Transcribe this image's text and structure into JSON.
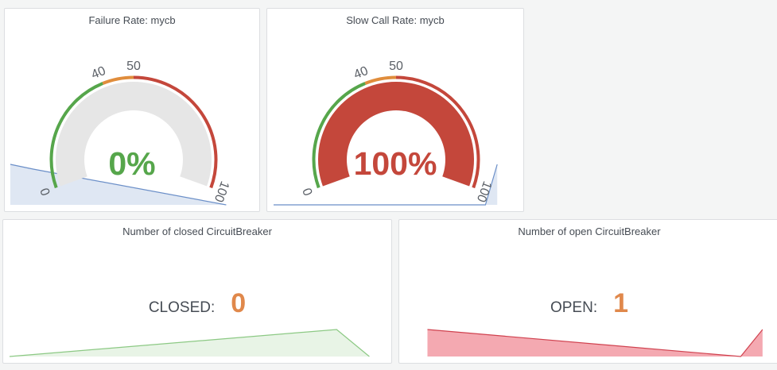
{
  "panels": {
    "failure_rate": {
      "title": "Failure Rate: mycb",
      "value": 0,
      "value_text": "0%",
      "value_color": "#56a64b",
      "min_label": "0",
      "max_label": "100",
      "threshold_labels": [
        "40",
        "50"
      ],
      "thresholds": [
        40,
        50
      ],
      "spark_values": [
        100,
        88,
        0
      ],
      "spark_color": "#b3c7e6"
    },
    "slow_call_rate": {
      "title": "Slow Call Rate: mycb",
      "value": 100,
      "value_text": "100%",
      "value_color": "#c4473b",
      "min_label": "0",
      "max_label": "100",
      "threshold_labels": [
        "40",
        "50"
      ],
      "thresholds": [
        40,
        50
      ],
      "spark_values": [
        0,
        0,
        100
      ],
      "spark_color": "#b3c7e6"
    },
    "closed_cb": {
      "title": "Number of closed CircuitBreaker",
      "prefix": "CLOSED:",
      "value": "0",
      "value_color": "#e0884b",
      "spark_values": [
        0,
        1,
        0
      ],
      "spark_color": "#73bf69"
    },
    "open_cb": {
      "title": "Number of open CircuitBreaker",
      "prefix": "OPEN:",
      "value": "1",
      "value_color": "#e0884b",
      "spark_values": [
        1,
        0,
        1
      ],
      "spark_color": "#f2495c"
    }
  },
  "colors": {
    "threshold_green": "#56a64b",
    "threshold_orange": "#e08d3c",
    "threshold_red": "#c4473b",
    "gauge_bg": "#e6e6e6"
  }
}
